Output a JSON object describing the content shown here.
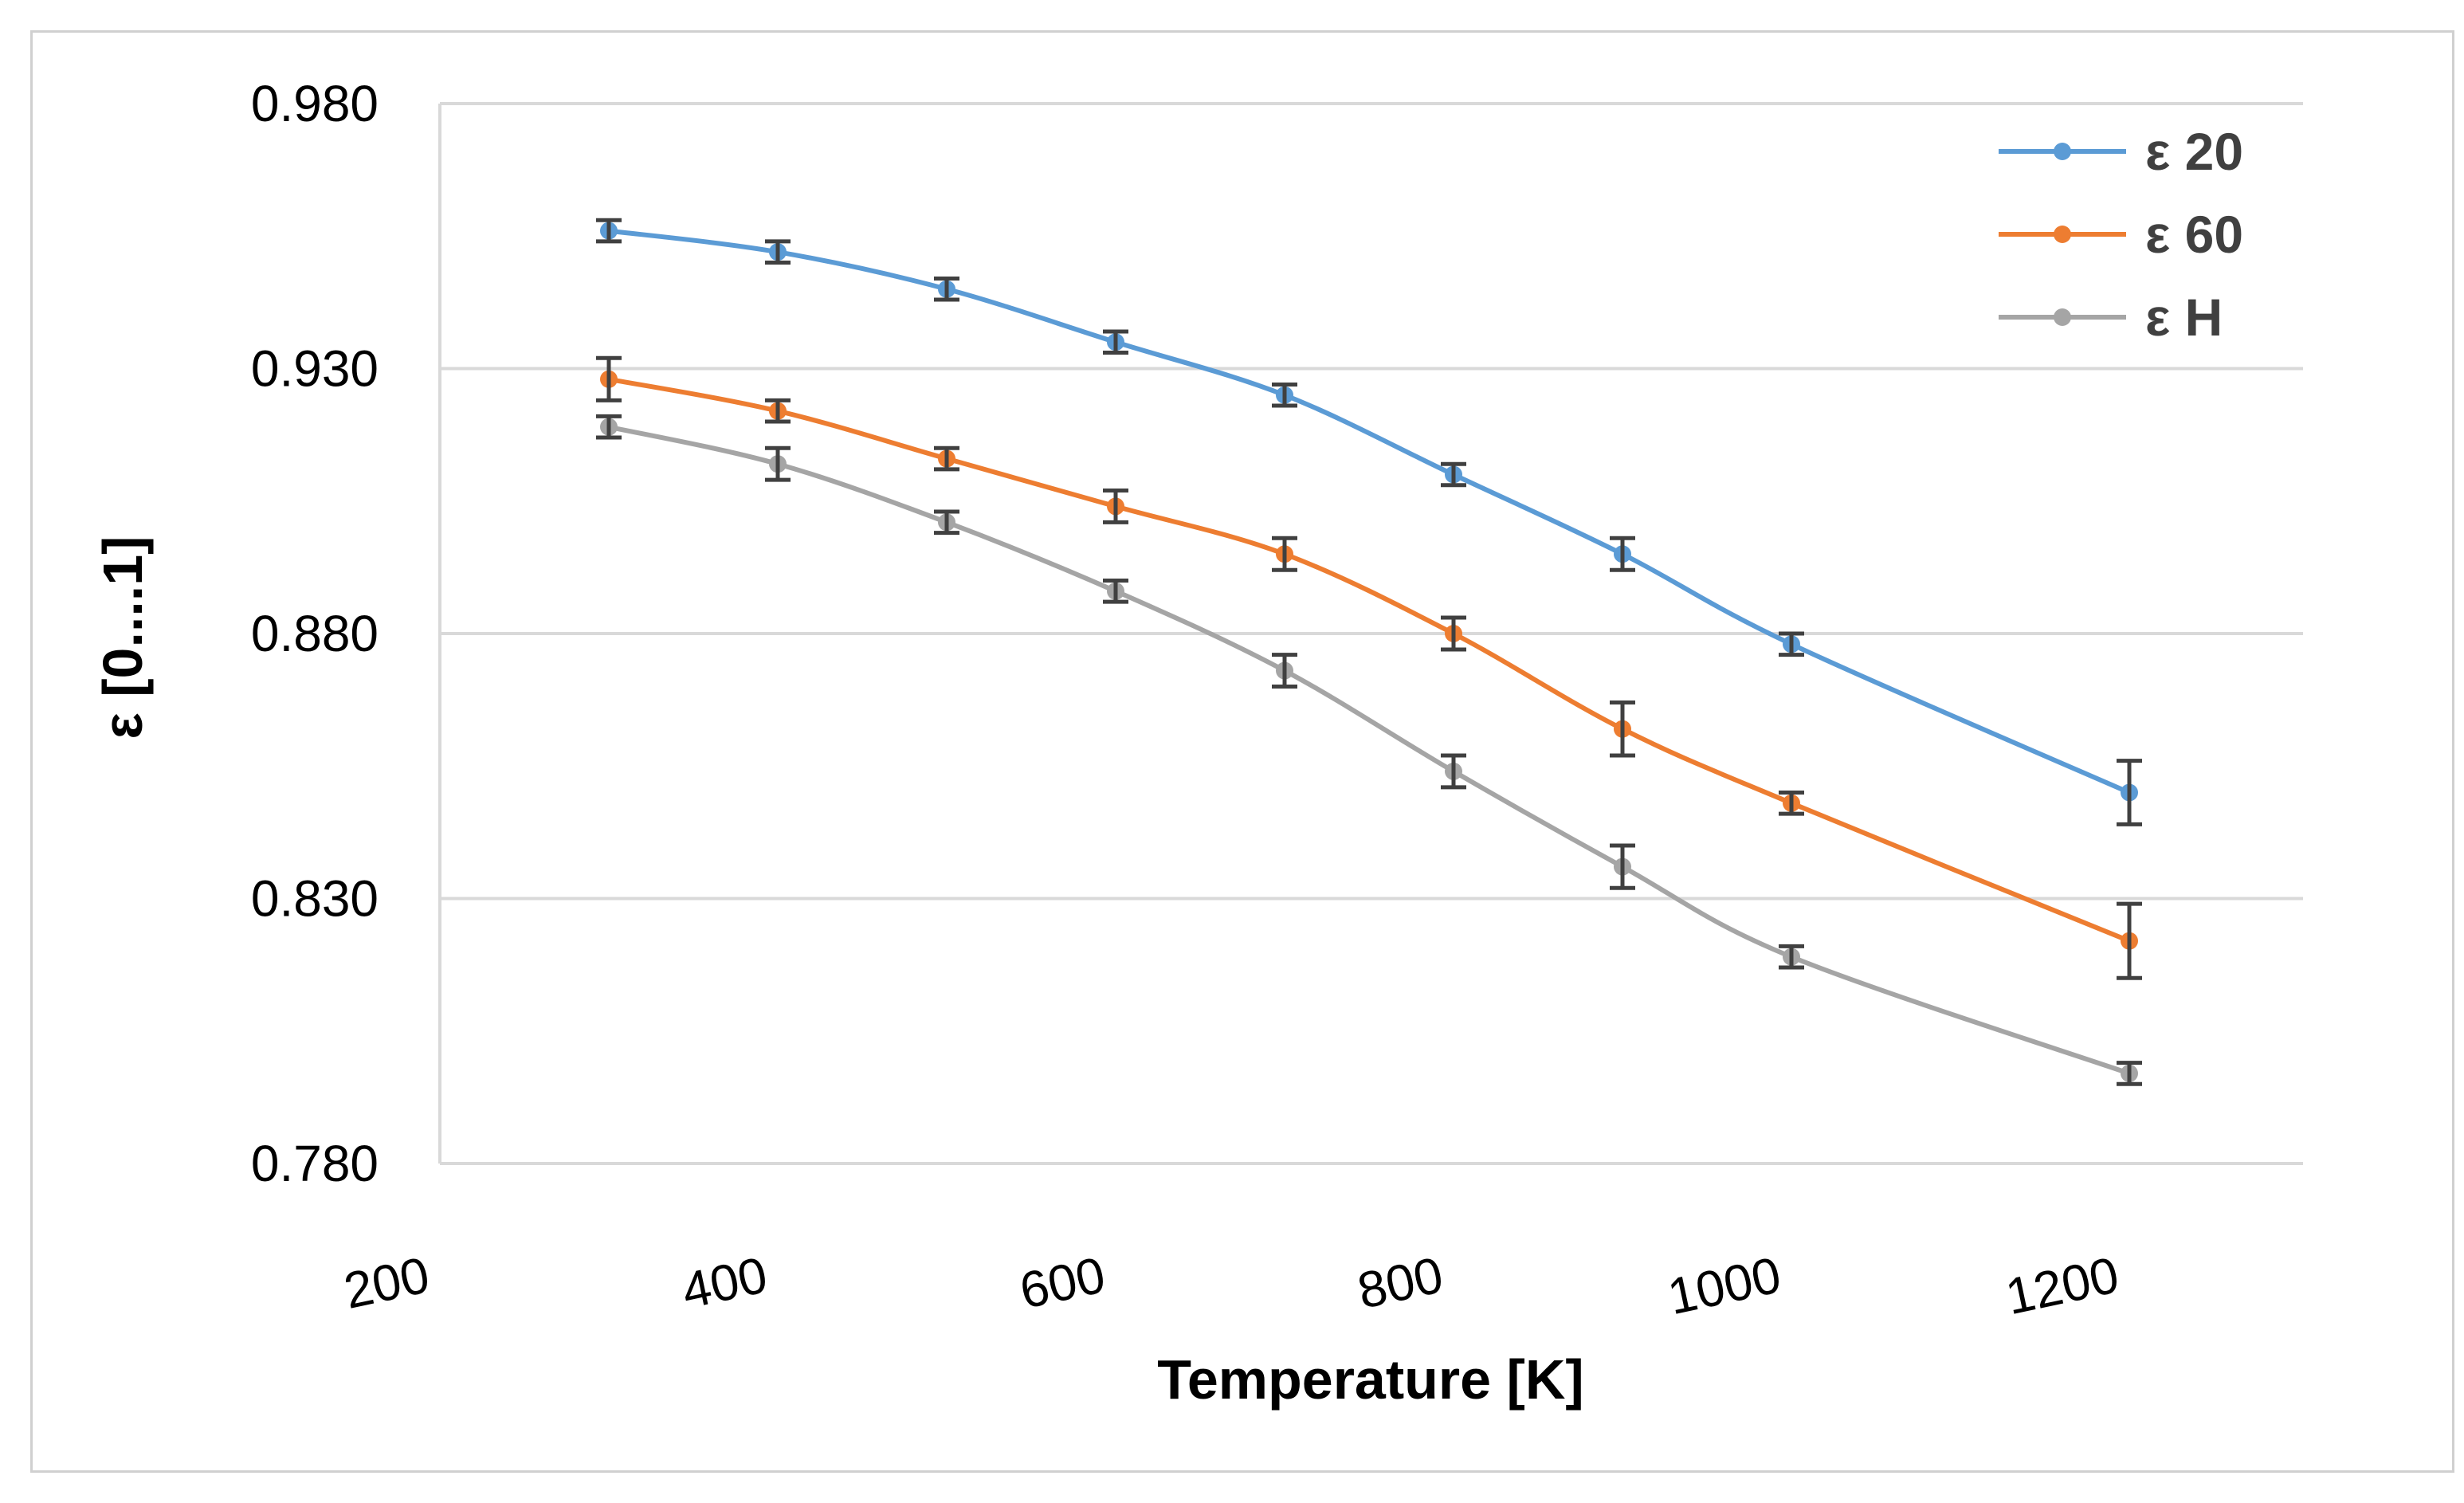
{
  "chart_data": {
    "type": "line",
    "title": "",
    "xlabel": "Temperature [K]",
    "ylabel": "ε [0....1]",
    "xlim": [
      200,
      1300
    ],
    "ylim": [
      0.78,
      0.98
    ],
    "x_ticks": [
      "200",
      "400",
      "600",
      "800",
      "1000",
      "1200"
    ],
    "y_ticks": [
      "0.780",
      "0.830",
      "0.880",
      "0.930",
      "0.980"
    ],
    "grid": true,
    "legend_position": "top-right",
    "x": [
      300,
      400,
      500,
      600,
      700,
      800,
      900,
      1000,
      1200
    ],
    "series": [
      {
        "name": "ε 20",
        "color": "#5b9bd5",
        "values": [
          0.956,
          0.952,
          0.945,
          0.935,
          0.925,
          0.91,
          0.895,
          0.878,
          0.85
        ],
        "errors": [
          0.002,
          0.002,
          0.002,
          0.002,
          0.002,
          0.002,
          0.003,
          0.002,
          0.006
        ]
      },
      {
        "name": "ε 60",
        "color": "#ed7d31",
        "values": [
          0.928,
          0.922,
          0.913,
          0.904,
          0.895,
          0.88,
          0.862,
          0.848,
          0.822
        ],
        "errors": [
          0.004,
          0.002,
          0.002,
          0.003,
          0.003,
          0.003,
          0.005,
          0.002,
          0.007
        ]
      },
      {
        "name": "ε H",
        "color": "#a5a5a5",
        "values": [
          0.919,
          0.912,
          0.901,
          0.888,
          0.873,
          0.854,
          0.836,
          0.819,
          0.797
        ],
        "errors": [
          0.002,
          0.003,
          0.002,
          0.002,
          0.003,
          0.003,
          0.004,
          0.002,
          0.002
        ]
      }
    ]
  }
}
